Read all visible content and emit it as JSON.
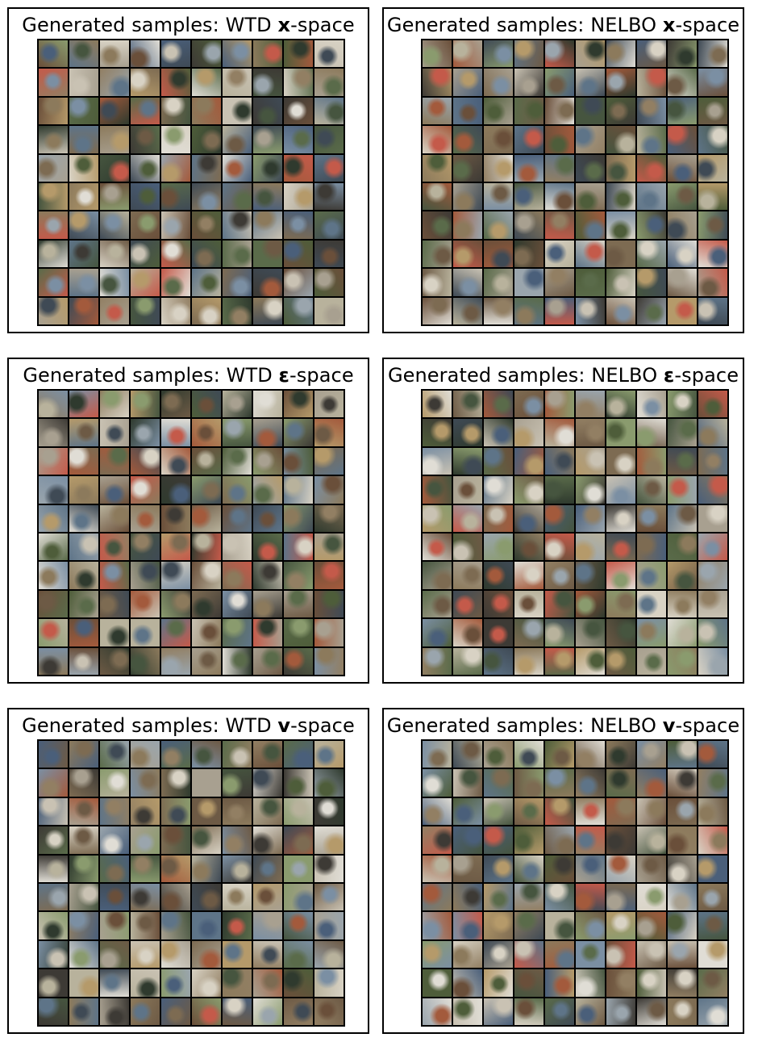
{
  "figure": {
    "panels": [
      {
        "id": "wtd-x",
        "title_prefix": "Generated samples: WTD ",
        "title_symbol": "x",
        "title_suffix": "-space"
      },
      {
        "id": "nelbo-x",
        "title_prefix": "Generated samples: NELBO ",
        "title_symbol": "x",
        "title_suffix": "-space"
      },
      {
        "id": "wtd-eps",
        "title_prefix": "Generated samples: WTD ",
        "title_symbol": "ε",
        "title_suffix": "-space"
      },
      {
        "id": "nelbo-eps",
        "title_prefix": "Generated samples: NELBO ",
        "title_symbol": "ε",
        "title_suffix": "-space"
      },
      {
        "id": "wtd-v",
        "title_prefix": "Generated samples: WTD ",
        "title_symbol": "v",
        "title_suffix": "-space"
      },
      {
        "id": "nelbo-v",
        "title_prefix": "Generated samples: NELBO ",
        "title_symbol": "v",
        "title_suffix": "-space"
      }
    ],
    "grid_rows": 10,
    "grid_cols": 10,
    "palette": [
      "#5a6b4a",
      "#8c7a5c",
      "#3f4a55",
      "#a8a090",
      "#6d5a45",
      "#4e5d3a",
      "#9aa5ad",
      "#7b8fa3",
      "#b59a6a",
      "#2f3a2e",
      "#c9c2b3",
      "#6a4f3a",
      "#8a9b6e",
      "#4a5f7a",
      "#a35a3c",
      "#d8d2c4",
      "#3d3a35",
      "#7d6b52",
      "#5e7488",
      "#b8b29c",
      "#927f63",
      "#46553f",
      "#c45a4a",
      "#e0ddd5"
    ]
  }
}
